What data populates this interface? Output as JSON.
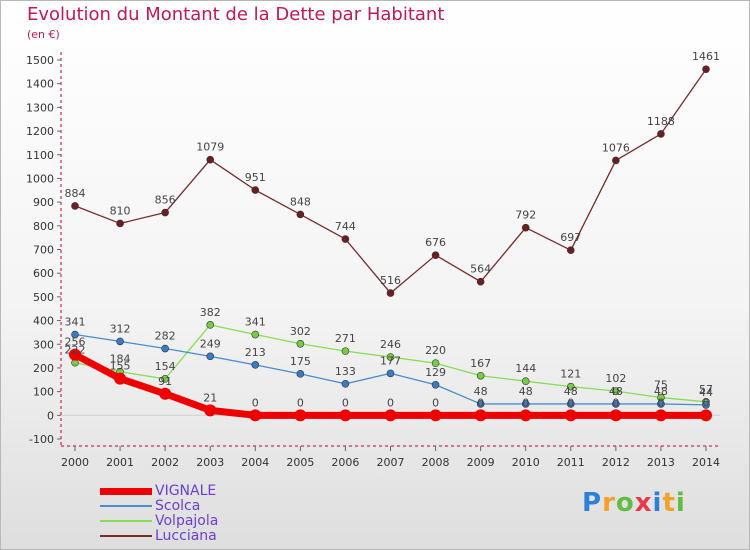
{
  "title": "Evolution du Montant de la Dette par Habitant",
  "subtitle": "(en €)",
  "logo": "Proxiti",
  "chart_data": {
    "type": "line",
    "title": "Evolution du Montant de la Dette par Habitant",
    "subtitle": "(en €)",
    "x": [
      "2000",
      "2001",
      "2002",
      "2003",
      "2004",
      "2005",
      "2006",
      "2007",
      "2008",
      "2009",
      "2010",
      "2011",
      "2012",
      "2013",
      "2014"
    ],
    "ylim": [
      -100,
      1500
    ],
    "yticks": [
      -100,
      0,
      100,
      200,
      300,
      400,
      500,
      600,
      700,
      800,
      900,
      1000,
      1100,
      1200,
      1300,
      1400,
      1500
    ],
    "grid": false,
    "legend": "bottom-left",
    "series": [
      {
        "name": "VIGNALE",
        "color": "#ee0000",
        "values": [
          256,
          155,
          91,
          21,
          0,
          0,
          0,
          0,
          0,
          0,
          0,
          0,
          0,
          0,
          0
        ],
        "labels": true
      },
      {
        "name": "Scolca",
        "color": "#4a8ccc",
        "values": [
          341,
          312,
          282,
          249,
          213,
          175,
          133,
          177,
          129,
          48,
          48,
          48,
          48,
          48,
          44
        ],
        "labels": true
      },
      {
        "name": "Volpajola",
        "color": "#88dd55",
        "values": [
          222,
          184,
          154,
          382,
          341,
          302,
          271,
          246,
          220,
          167,
          144,
          121,
          102,
          75,
          57
        ],
        "labels": true
      },
      {
        "name": "Lucciana",
        "color": "#7a2a2a",
        "values": [
          884,
          810,
          856,
          1079,
          951,
          848,
          744,
          516,
          676,
          564,
          792,
          697,
          1076,
          1188,
          1461
        ],
        "labels": true
      }
    ]
  }
}
